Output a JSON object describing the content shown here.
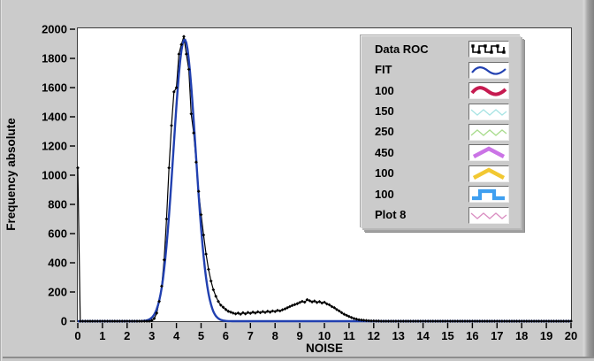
{
  "panel": {
    "background": "#cbcbcb",
    "plot_background": "#ffffff",
    "plot_border": "#3c3c3c"
  },
  "axes": {
    "xlabel": "NOISE",
    "ylabel": "Frequency absolute",
    "xlim": [
      0,
      20
    ],
    "ylim": [
      0,
      2000
    ],
    "xticks": [
      0,
      1,
      2,
      3,
      4,
      5,
      6,
      7,
      8,
      9,
      10,
      11,
      12,
      13,
      14,
      15,
      16,
      17,
      18,
      19,
      20
    ],
    "yticks": [
      0,
      200,
      400,
      600,
      800,
      1000,
      1200,
      1400,
      1600,
      1800,
      2000
    ]
  },
  "legend": {
    "items": [
      {
        "label": "Data ROC",
        "color": "#000000",
        "style": "square-wave-markers",
        "weight": 1.6
      },
      {
        "label": "FIT",
        "color": "#2140b0",
        "style": "wave",
        "weight": 2.2
      },
      {
        "label": "100",
        "color": "#c61a50",
        "style": "wave",
        "weight": 4
      },
      {
        "label": "150",
        "color": "#a8e4e4",
        "style": "zigzag-down",
        "weight": 1.3
      },
      {
        "label": "250",
        "color": "#a8dc8c",
        "style": "zigzag-up",
        "weight": 1.3
      },
      {
        "label": "450",
        "color": "#cb74e6",
        "style": "chevron",
        "weight": 4.5
      },
      {
        "label": "100",
        "color": "#f2c832",
        "style": "chevron",
        "weight": 4.5
      },
      {
        "label": "100",
        "color": "#3f9ff0",
        "style": "step",
        "weight": 4.2
      },
      {
        "label": "Plot 8",
        "color": "#da8ec2",
        "style": "zigzag-down",
        "weight": 1.3
      }
    ]
  },
  "chart_data": {
    "type": "line",
    "title": "",
    "xlabel": "NOISE",
    "ylabel": "Frequency absolute",
    "xlim": [
      0,
      20
    ],
    "ylim": [
      0,
      2000
    ],
    "grid": false,
    "legend_position": "inside-top-right",
    "series": [
      {
        "name": "Data ROC",
        "color": "#000000",
        "marker": "diamond",
        "line_width": 1.2,
        "x_start": 0,
        "x_step": 0.1,
        "values": [
          1050,
          0,
          0,
          0,
          0,
          0,
          0,
          0,
          0,
          0,
          0,
          0,
          0,
          0,
          0,
          0,
          0,
          0,
          0,
          0,
          0,
          0,
          0,
          0,
          0,
          0,
          0,
          0,
          0,
          0,
          5,
          18,
          55,
          135,
          240,
          420,
          700,
          1050,
          1340,
          1570,
          1600,
          1830,
          1895,
          1950,
          1830,
          1725,
          1420,
          1290,
          1090,
          890,
          730,
          590,
          460,
          355,
          275,
          215,
          170,
          135,
          110,
          95,
          80,
          68,
          62,
          55,
          50,
          56,
          48,
          58,
          50,
          60,
          54,
          62,
          56,
          64,
          58,
          66,
          60,
          68,
          62,
          70,
          66,
          74,
          70,
          78,
          84,
          92,
          100,
          108,
          114,
          120,
          128,
          136,
          130,
          148,
          140,
          132,
          138,
          128,
          134,
          124,
          130,
          118,
          112,
          100,
          92,
          80,
          70,
          58,
          48,
          40,
          32,
          25,
          18,
          14,
          10,
          8,
          6,
          4,
          3,
          2,
          2,
          1,
          1,
          0,
          0,
          0,
          0,
          0,
          0,
          0,
          0,
          0,
          0,
          0,
          0,
          0,
          0,
          0,
          0,
          0,
          0,
          0,
          0,
          0,
          0,
          0,
          0,
          0,
          0,
          0,
          0,
          0,
          0,
          0,
          0,
          0,
          0,
          0,
          0,
          0,
          0,
          0,
          0,
          0,
          0,
          0,
          0,
          0,
          0,
          0,
          0,
          0,
          0,
          0,
          0,
          0,
          0,
          0,
          0,
          0,
          0,
          0,
          0,
          0,
          0,
          0,
          0,
          0,
          0,
          0,
          0,
          0,
          0,
          0,
          0,
          0,
          0,
          0,
          0,
          0,
          0
        ]
      },
      {
        "name": "FIT",
        "color": "#2140b0",
        "line_width": 2.4,
        "model": "gaussian",
        "amplitude": 1930,
        "center": 4.33,
        "sigma": 0.45,
        "baseline": 0,
        "x_range": [
          0,
          20
        ]
      }
    ]
  }
}
